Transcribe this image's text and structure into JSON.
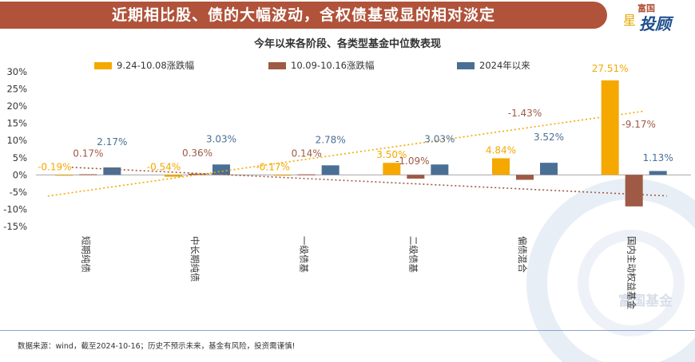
{
  "header": {
    "banner_title": "近期相比股、债的大幅波动，含权债基或显的相对淡定",
    "logo_top": "富国",
    "logo_main": "投顾",
    "logo_star": "星"
  },
  "watermark": "富国基金",
  "footer": {
    "source_note": "数据来源：wind，截至2024-10-16；历史不预示未来，基金有风险，投资需谨慎!"
  },
  "colors": {
    "series1": "#f5a800",
    "series2": "#9e5a45",
    "series3": "#4a6f95",
    "banner": "#b0533a"
  },
  "chart_data": {
    "type": "bar",
    "title": "今年以来各阶段、各类型基金中位数表现",
    "categories": [
      "短期纯债",
      "中长期纯债",
      "一级债基",
      "二级债基",
      "偏债混合",
      "国内主动权益基金"
    ],
    "series": [
      {
        "name": "9.24-10.08涨跌幅",
        "values": [
          -0.19,
          -0.54,
          -0.17,
          3.5,
          4.84,
          27.51
        ],
        "labels": [
          "-0.19%",
          "-0.54%",
          "-0.17%",
          "3.50%",
          "4.84%",
          "27.51%"
        ],
        "trendline": "linear"
      },
      {
        "name": "10.09-10.16涨跌幅",
        "values": [
          0.17,
          0.36,
          0.14,
          -1.09,
          -1.43,
          -9.17
        ],
        "labels": [
          "0.17%",
          "0.36%",
          "0.14%",
          "-1.09%",
          "-1.43%",
          "-9.17%"
        ],
        "trendline": "linear"
      },
      {
        "name": "2024年以来",
        "values": [
          2.17,
          3.03,
          2.78,
          3.03,
          3.52,
          1.13
        ],
        "labels": [
          "2.17%",
          "3.03%",
          "2.78%",
          "3.03%",
          "3.52%",
          "1.13%"
        ]
      }
    ],
    "ylim": [
      -15,
      30
    ],
    "yticks": [
      30,
      25,
      20,
      15,
      10,
      5,
      0,
      -5,
      -10,
      -15
    ],
    "ytick_labels": [
      "30%",
      "25%",
      "20%",
      "15%",
      "10%",
      "5%",
      "0%",
      "-5%",
      "-10%",
      "-15%"
    ],
    "xlabel": "",
    "ylabel": "",
    "legend_position": "top"
  }
}
